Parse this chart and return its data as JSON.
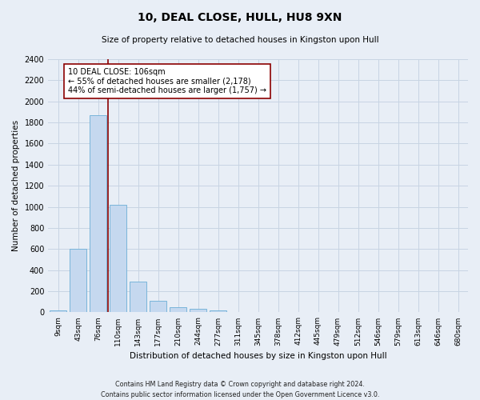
{
  "title": "10, DEAL CLOSE, HULL, HU8 9XN",
  "subtitle": "Size of property relative to detached houses in Kingston upon Hull",
  "xlabel": "Distribution of detached houses by size in Kingston upon Hull",
  "ylabel": "Number of detached properties",
  "footer_line1": "Contains HM Land Registry data © Crown copyright and database right 2024.",
  "footer_line2": "Contains public sector information licensed under the Open Government Licence v3.0.",
  "bar_labels": [
    "9sqm",
    "43sqm",
    "76sqm",
    "110sqm",
    "143sqm",
    "177sqm",
    "210sqm",
    "244sqm",
    "277sqm",
    "311sqm",
    "345sqm",
    "378sqm",
    "412sqm",
    "445sqm",
    "479sqm",
    "512sqm",
    "546sqm",
    "579sqm",
    "613sqm",
    "646sqm",
    "680sqm"
  ],
  "bar_values": [
    20,
    600,
    1870,
    1020,
    295,
    110,
    50,
    30,
    20,
    0,
    0,
    0,
    0,
    0,
    0,
    0,
    0,
    0,
    0,
    0,
    0
  ],
  "bar_color": "#c5d8ef",
  "bar_edge_color": "#6baed6",
  "grid_color": "#c8d4e3",
  "background_color": "#e8eef6",
  "vline_color": "#8b0000",
  "annotation_text": "10 DEAL CLOSE: 106sqm\n← 55% of detached houses are smaller (2,178)\n44% of semi-detached houses are larger (1,757) →",
  "annotation_box_color": "#ffffff",
  "annotation_box_edge": "#8b0000",
  "ylim": [
    0,
    2400
  ],
  "yticks": [
    0,
    200,
    400,
    600,
    800,
    1000,
    1200,
    1400,
    1600,
    1800,
    2000,
    2200,
    2400
  ]
}
